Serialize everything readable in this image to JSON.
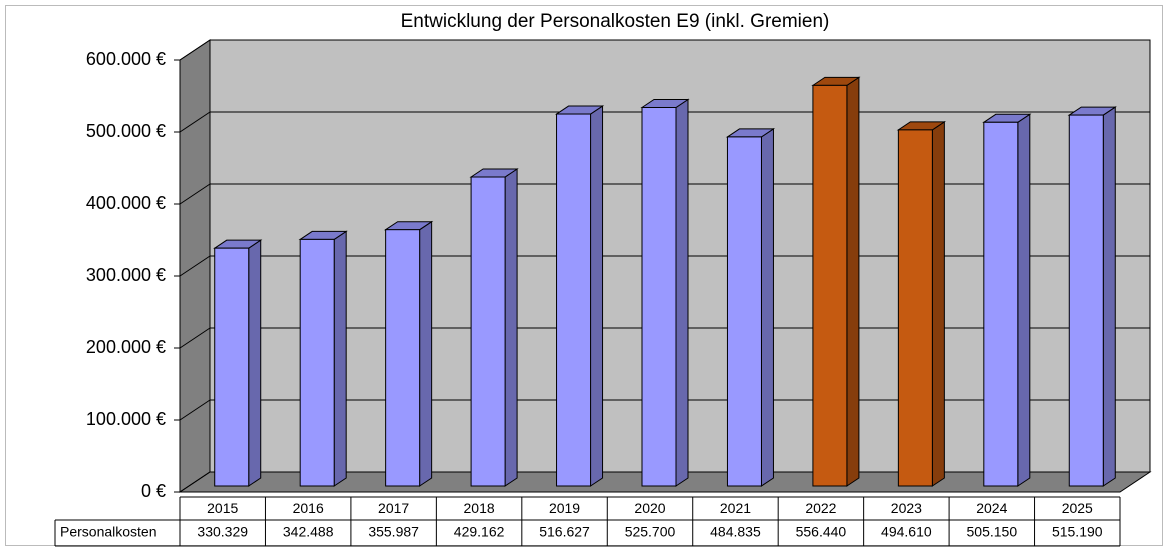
{
  "chart_data": {
    "type": "bar3d",
    "title": "Entwicklung der Personalkosten E9 (inkl. Gremien)",
    "categories": [
      "2015",
      "2016",
      "2017",
      "2018",
      "2019",
      "2020",
      "2021",
      "2022",
      "2023",
      "2024",
      "2025"
    ],
    "series": [
      {
        "name": "Personalkosten",
        "values": [
          330329,
          342488,
          355987,
          429162,
          516627,
          525700,
          484835,
          556440,
          494610,
          505150,
          515190
        ],
        "value_labels": [
          "330.329",
          "342.488",
          "355.987",
          "429.162",
          "516.627",
          "525.700",
          "484.835",
          "556.440",
          "494.610",
          "505.150",
          "515.190"
        ],
        "colors": [
          "#9999ff",
          "#9999ff",
          "#9999ff",
          "#9999ff",
          "#9999ff",
          "#9999ff",
          "#9999ff",
          "#c55a11",
          "#c55a11",
          "#9999ff",
          "#9999ff"
        ]
      }
    ],
    "ylim": [
      0,
      600000
    ],
    "yticks": [
      {
        "value": 0,
        "label": "0 €"
      },
      {
        "value": 100000,
        "label": "100.000 €"
      },
      {
        "value": 200000,
        "label": "200.000 €"
      },
      {
        "value": 300000,
        "label": "300.000 €"
      },
      {
        "value": 400000,
        "label": "400.000 €"
      },
      {
        "value": 500000,
        "label": "500.000 €"
      },
      {
        "value": 600000,
        "label": "600.000 €"
      }
    ],
    "grid": true
  }
}
